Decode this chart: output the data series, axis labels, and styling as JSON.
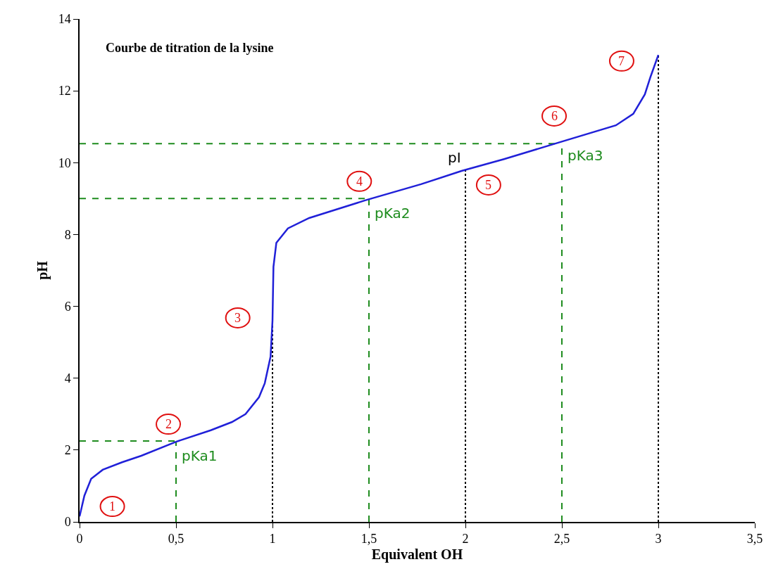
{
  "chart_data": {
    "type": "line",
    "title": "Courbe de titration de la lysine",
    "xlabel": "Equivalent OH",
    "ylabel": "pH",
    "xlim": [
      0,
      3.5
    ],
    "xticks": [
      0,
      {
        "value": 0.5,
        "label": "0,5"
      },
      1,
      {
        "value": 1.5,
        "label": "1,5"
      },
      2,
      {
        "value": 2.5,
        "label": "2,5"
      },
      3,
      {
        "value": 3.5,
        "label": "3,5"
      }
    ],
    "ylim": [
      0,
      14
    ],
    "yticks": [
      0,
      2,
      4,
      6,
      8,
      10,
      12,
      14
    ],
    "grid": false,
    "marker": "none",
    "line_style": "solid",
    "x": [
      0,
      0.025,
      0.06,
      0.12,
      0.22,
      0.32,
      0.5,
      0.68,
      0.79,
      0.86,
      0.93,
      0.96,
      0.99,
      1.0,
      1.005,
      1.02,
      1.08,
      1.19,
      1.48,
      1.77,
      1.98,
      2.2,
      2.49,
      2.78,
      2.87,
      2.93,
      2.96,
      3.0
    ],
    "series": [
      {
        "color": "#2020d8",
        "values": [
          0.15,
          0.73,
          1.2,
          1.45,
          1.66,
          1.84,
          2.23,
          2.55,
          2.78,
          3.0,
          3.47,
          3.86,
          4.6,
          5.6,
          7.1,
          7.77,
          8.17,
          8.46,
          8.95,
          9.4,
          9.77,
          10.1,
          10.57,
          11.04,
          11.36,
          11.9,
          12.4,
          13.0
        ]
      }
    ],
    "ref_lines": [
      {
        "axis": "x",
        "value": 0.5,
        "label": "pKa1",
        "color": "#1e8c1e",
        "line_style": "dashed"
      },
      {
        "axis": "y",
        "value": 2.25,
        "color": "#1e8c1e",
        "line_style": "dashed"
      },
      {
        "axis": "x",
        "value": 1.5,
        "label": "pKa2",
        "color": "#1e8c1e",
        "line_style": "dashed"
      },
      {
        "axis": "y",
        "value": 9.0,
        "color": "#1e8c1e",
        "line_style": "dashed"
      },
      {
        "axis": "x",
        "value": 2.5,
        "label": "pKa3",
        "color": "#1e8c1e",
        "line_style": "dashed"
      },
      {
        "axis": "y",
        "value": 10.53,
        "color": "#1e8c1e",
        "line_style": "dashed"
      },
      {
        "axis": "x",
        "value": 1,
        "color": "#000000",
        "line_style": "dotted"
      },
      {
        "axis": "x",
        "value": 2,
        "label": "pI",
        "color": "#000000",
        "line_style": "dotted"
      },
      {
        "axis": "x",
        "value": 3,
        "color": "#000000",
        "line_style": "dotted"
      }
    ],
    "annotations": [
      {
        "text": "1",
        "x": 0.17,
        "y": 0.43
      },
      {
        "text": "2",
        "x": 0.46,
        "y": 2.72
      },
      {
        "text": "3",
        "x": 0.82,
        "y": 5.68
      },
      {
        "text": "4",
        "x": 1.45,
        "y": 9.48
      },
      {
        "text": "5",
        "x": 2.12,
        "y": 9.38
      },
      {
        "text": "6",
        "x": 2.46,
        "y": 11.3
      },
      {
        "text": "7",
        "x": 2.81,
        "y": 12.83
      }
    ]
  }
}
